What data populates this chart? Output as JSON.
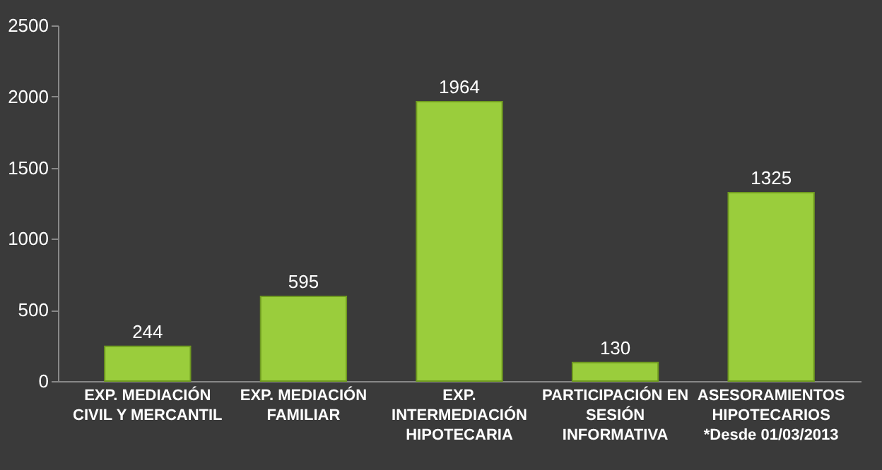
{
  "chart_data": {
    "type": "bar",
    "categories": [
      "EXP. MEDIACIÓN\nCIVIL Y MERCANTIL",
      "EXP. MEDIACIÓN\nFAMILIAR",
      "EXP.\nINTERMEDIACIÓN\nHIPOTECARIA",
      "PARTICIPACIÓN EN\nSESIÓN\nINFORMATIVA",
      "ASESORAMIENTOS\nHIPOTECARIOS\n*Desde 01/03/2013"
    ],
    "values": [
      244,
      595,
      1964,
      130,
      1325
    ],
    "color": "#9acd3c",
    "ylim": [
      0,
      2500
    ],
    "yticks": [
      0,
      500,
      1000,
      1500,
      2000,
      2500
    ],
    "grid": false,
    "data_labels": true
  }
}
